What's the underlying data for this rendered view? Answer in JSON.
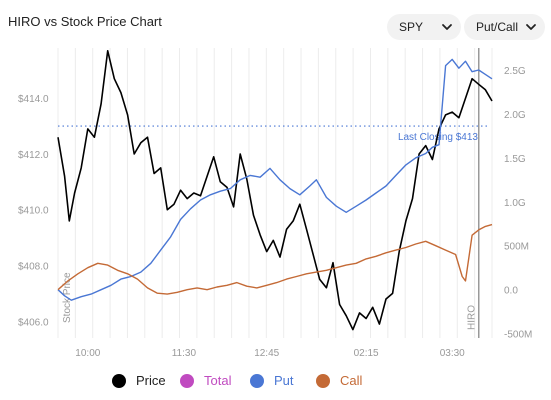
{
  "header": {
    "title": "HIRO vs Stock Price Chart",
    "symbol_select": "SPY",
    "mode_select": "Put/Call"
  },
  "chart_data": {
    "type": "line",
    "x_ticks": [
      "10:00",
      "11:30",
      "12:45",
      "02:15",
      "03:30"
    ],
    "y_left_ticks": [
      "$406.0",
      "$408.0",
      "$410.0",
      "$412.0",
      "$414.0"
    ],
    "y_left_values": [
      406,
      408,
      410,
      412,
      414
    ],
    "y_right_ticks": [
      "-500M",
      "0.0",
      "500M",
      "1.0G",
      "1.5G",
      "2.0G",
      "2.5G"
    ],
    "y_right_values": [
      -0.5,
      0,
      0.5,
      1.0,
      1.5,
      2.0,
      2.5
    ],
    "ylim_left": [
      405.4,
      415.8
    ],
    "ylim_right": [
      -0.55,
      2.75
    ],
    "x_tick_positions": [
      0.9,
      2.35,
      3.6,
      5.1,
      6.4
    ],
    "xlim": [
      0.45,
      7.0
    ],
    "annotations": {
      "last_closing_label": "Last Closing $413",
      "last_closing_value": 413.0,
      "stock_price_label": "Stock Price",
      "hiro_label": "HIRO",
      "hiro_x": 6.8
    },
    "series": [
      {
        "name": "Price",
        "color": "#000000",
        "x": [
          0.45,
          0.55,
          0.62,
          0.7,
          0.8,
          0.9,
          1.0,
          1.1,
          1.2,
          1.3,
          1.4,
          1.5,
          1.6,
          1.7,
          1.8,
          1.9,
          2.0,
          2.1,
          2.2,
          2.3,
          2.4,
          2.5,
          2.6,
          2.7,
          2.8,
          2.9,
          3.0,
          3.1,
          3.2,
          3.3,
          3.4,
          3.5,
          3.6,
          3.7,
          3.8,
          3.9,
          4.0,
          4.1,
          4.2,
          4.3,
          4.4,
          4.5,
          4.6,
          4.7,
          4.8,
          4.9,
          5.0,
          5.1,
          5.2,
          5.3,
          5.4,
          5.5,
          5.6,
          5.7,
          5.8,
          5.9,
          6.0,
          6.1,
          6.2,
          6.3,
          6.4,
          6.5,
          6.6,
          6.7,
          6.8,
          6.9,
          7.0
        ],
        "values": [
          412.6,
          411.2,
          409.6,
          410.6,
          411.5,
          412.9,
          412.6,
          413.8,
          415.7,
          414.7,
          414.2,
          413.4,
          412.0,
          412.4,
          412.6,
          411.3,
          411.5,
          410.0,
          410.2,
          410.7,
          410.4,
          410.6,
          410.5,
          411.2,
          411.9,
          411.0,
          410.8,
          410.1,
          412.0,
          411.1,
          409.8,
          409.1,
          408.5,
          408.9,
          408.3,
          409.3,
          409.6,
          410.2,
          409.3,
          408.4,
          407.5,
          407.2,
          408.1,
          406.6,
          406.2,
          405.7,
          406.3,
          406.1,
          406.5,
          405.9,
          406.8,
          407.0,
          408.5,
          409.6,
          410.4,
          412.0,
          412.3,
          411.8,
          412.9,
          413.4,
          413.5,
          413.3,
          414.0,
          414.7,
          414.5,
          414.3,
          413.9
        ]
      },
      {
        "name": "Total",
        "color": "#c04bc0",
        "x": [],
        "values": []
      },
      {
        "name": "Put",
        "color": "#4a77d4",
        "x": [
          0.45,
          0.55,
          0.65,
          0.8,
          0.95,
          1.1,
          1.25,
          1.4,
          1.55,
          1.7,
          1.85,
          2.0,
          2.15,
          2.3,
          2.45,
          2.6,
          2.75,
          2.9,
          3.05,
          3.2,
          3.35,
          3.5,
          3.65,
          3.8,
          3.95,
          4.1,
          4.25,
          4.35,
          4.5,
          4.65,
          4.8,
          4.95,
          5.1,
          5.25,
          5.4,
          5.55,
          5.7,
          5.85,
          6.0,
          6.1,
          6.2,
          6.3,
          6.4,
          6.5,
          6.6,
          6.7,
          6.8,
          6.9,
          7.0
        ],
        "values": [
          0.0,
          -0.07,
          -0.12,
          -0.08,
          -0.05,
          0.0,
          0.05,
          0.12,
          0.15,
          0.2,
          0.3,
          0.45,
          0.6,
          0.8,
          0.92,
          1.02,
          1.08,
          1.12,
          1.15,
          1.25,
          1.3,
          1.28,
          1.38,
          1.25,
          1.15,
          1.08,
          1.18,
          1.25,
          1.05,
          0.95,
          0.88,
          0.95,
          1.02,
          1.1,
          1.18,
          1.3,
          1.42,
          1.5,
          1.55,
          1.62,
          1.65,
          2.55,
          2.62,
          2.52,
          2.6,
          2.48,
          2.5,
          2.45,
          2.4
        ]
      },
      {
        "name": "Call",
        "color": "#c46a36",
        "x": [
          0.45,
          0.6,
          0.75,
          0.9,
          1.05,
          1.2,
          1.35,
          1.5,
          1.65,
          1.8,
          1.95,
          2.1,
          2.25,
          2.4,
          2.55,
          2.7,
          2.85,
          3.0,
          3.15,
          3.3,
          3.45,
          3.6,
          3.75,
          3.9,
          4.05,
          4.2,
          4.35,
          4.5,
          4.65,
          4.8,
          4.95,
          5.1,
          5.25,
          5.4,
          5.55,
          5.7,
          5.85,
          6.0,
          6.15,
          6.3,
          6.45,
          6.55,
          6.6,
          6.7,
          6.8,
          6.9,
          7.0
        ],
        "values": [
          0.0,
          0.1,
          0.18,
          0.25,
          0.3,
          0.28,
          0.22,
          0.18,
          0.12,
          0.02,
          -0.04,
          -0.05,
          -0.03,
          0.0,
          0.02,
          0.0,
          0.03,
          0.05,
          0.08,
          0.04,
          0.02,
          0.05,
          0.08,
          0.12,
          0.15,
          0.18,
          0.2,
          0.22,
          0.25,
          0.28,
          0.3,
          0.35,
          0.38,
          0.42,
          0.45,
          0.48,
          0.52,
          0.55,
          0.5,
          0.45,
          0.4,
          0.15,
          0.1,
          0.62,
          0.68,
          0.72,
          0.74
        ]
      }
    ]
  },
  "legend": {
    "items": [
      {
        "label": "Price",
        "color": "#000000"
      },
      {
        "label": "Total",
        "color": "#c04bc0"
      },
      {
        "label": "Put",
        "color": "#4a77d4"
      },
      {
        "label": "Call",
        "color": "#c46a36"
      }
    ]
  }
}
